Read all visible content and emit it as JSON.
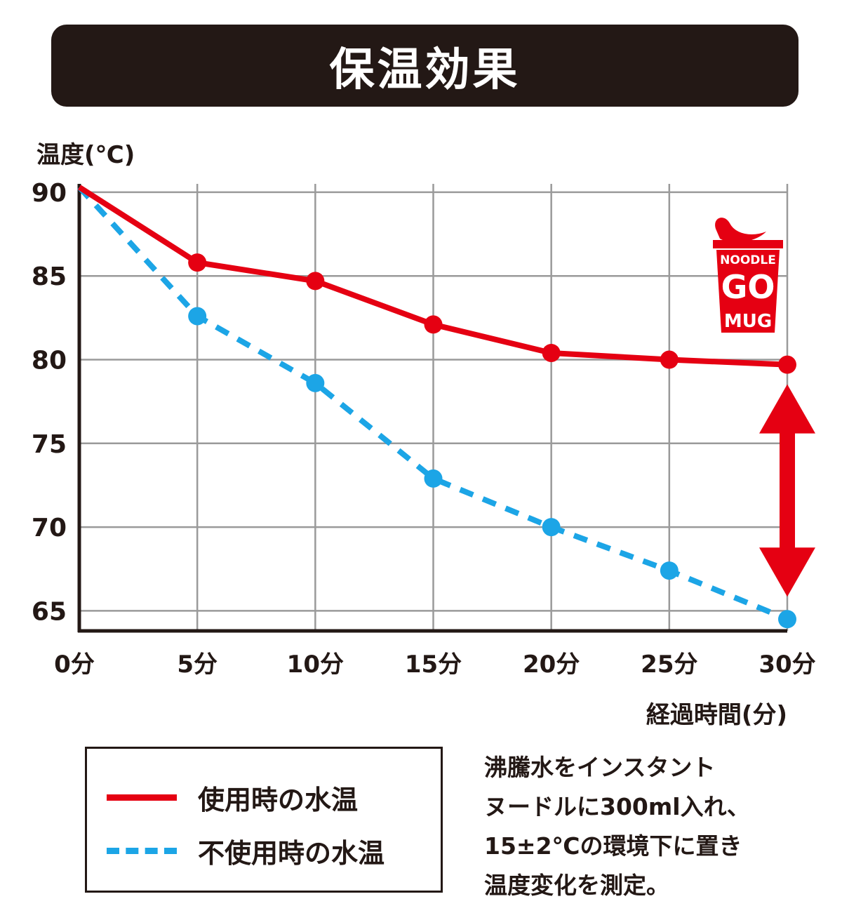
{
  "title": "保温効果",
  "chart_data": {
    "type": "line",
    "ylabel": "温度(℃)",
    "xlabel": "経過時間(分)",
    "categories": [
      "0分",
      "5分",
      "10分",
      "15分",
      "20分",
      "25分",
      "30分"
    ],
    "x": [
      0,
      5,
      10,
      15,
      20,
      25,
      30
    ],
    "ylim": [
      63.8,
      90.5
    ],
    "yticks": [
      90,
      85,
      80,
      75,
      70,
      65
    ],
    "grid": true,
    "series": [
      {
        "name": "使用時の水温",
        "color": "#e50012",
        "style": "solid",
        "values": [
          90.3,
          85.8,
          84.7,
          82.1,
          80.4,
          80.0,
          79.7
        ]
      },
      {
        "name": "不使用時の水温",
        "color": "#1ca5e6",
        "style": "dashed",
        "values": [
          90.3,
          82.6,
          78.6,
          72.9,
          70.0,
          67.4,
          64.5
        ]
      }
    ],
    "annotations": [
      "double-arrow-between-series-at-30min"
    ]
  },
  "logo": {
    "lines": [
      "NOODLE",
      "GO",
      "MUG"
    ],
    "color": "#e50012"
  },
  "note": {
    "lines": [
      "沸騰水をインスタント",
      "ヌードルに300ml入れ、",
      "15±2℃の環境下に置き",
      "温度変化を測定。"
    ]
  }
}
